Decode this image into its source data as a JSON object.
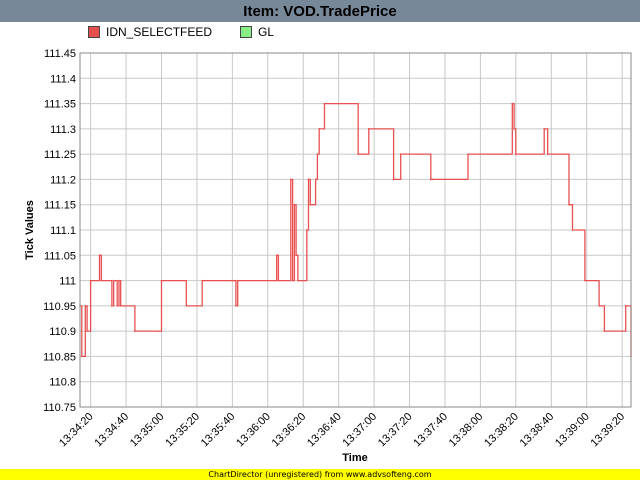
{
  "header": {
    "title": "Item: VOD.TradePrice"
  },
  "footer": {
    "text": "ChartDirector (unregistered) from www.advsofteng.com"
  },
  "colors": {
    "title_bg": "#778899",
    "series1": "#e85050",
    "series2": "#88ee88",
    "footer_bg": "#ffff00"
  },
  "chart_data": {
    "type": "line",
    "title": "Item: VOD.TradePrice",
    "xlabel": "Time",
    "ylabel": "Tick Values",
    "ylim": [
      110.75,
      111.45
    ],
    "yticks": [
      "110.75",
      "110.8",
      "110.85",
      "110.9",
      "110.95",
      "111",
      "111.05",
      "111.1",
      "111.15",
      "111.2",
      "111.25",
      "111.3",
      "111.35",
      "111.4",
      "111.45"
    ],
    "xlim": [
      "13:34:14",
      "13:39:25"
    ],
    "xticks": [
      "13:34:20",
      "13:34:40",
      "13:35:00",
      "13:35:20",
      "13:35:40",
      "13:36:00",
      "13:36:20",
      "13:36:40",
      "13:37:00",
      "13:37:20",
      "13:37:40",
      "13:38:00",
      "13:38:20",
      "13:38:40",
      "13:39:00",
      "13:39:20"
    ],
    "grid": true,
    "legend": "top-left",
    "legend_entries": [
      {
        "name": "IDN_SELECTFEED",
        "color": "#e85050"
      },
      {
        "name": "GL",
        "color": "#88ee88"
      }
    ],
    "series": [
      {
        "name": "IDN_SELECTFEED",
        "step": true,
        "points": [
          [
            "13:34:14",
            110.95
          ],
          [
            "13:34:15",
            110.85
          ],
          [
            "13:34:17",
            110.95
          ],
          [
            "13:34:18",
            110.9
          ],
          [
            "13:34:20",
            111.0
          ],
          [
            "13:34:25",
            111.05
          ],
          [
            "13:34:26",
            111.0
          ],
          [
            "13:34:32",
            110.95
          ],
          [
            "13:34:33",
            111.0
          ],
          [
            "13:34:35",
            110.95
          ],
          [
            "13:34:36",
            111.0
          ],
          [
            "13:34:37",
            110.95
          ],
          [
            "13:34:45",
            110.9
          ],
          [
            "13:34:58",
            110.9
          ],
          [
            "13:35:00",
            111.0
          ],
          [
            "13:35:14",
            110.95
          ],
          [
            "13:35:23",
            111.0
          ],
          [
            "13:35:41",
            111.0
          ],
          [
            "13:35:42",
            110.95
          ],
          [
            "13:35:43",
            111.0
          ],
          [
            "13:36:04",
            111.0
          ],
          [
            "13:36:05",
            111.05
          ],
          [
            "13:36:06",
            111.0
          ],
          [
            "13:36:13",
            111.2
          ],
          [
            "13:36:14",
            111.0
          ],
          [
            "13:36:15",
            111.15
          ],
          [
            "13:36:16",
            111.05
          ],
          [
            "13:36:17",
            111.0
          ],
          [
            "13:36:22",
            111.1
          ],
          [
            "13:36:23",
            111.2
          ],
          [
            "13:36:24",
            111.15
          ],
          [
            "13:36:27",
            111.2
          ],
          [
            "13:36:28",
            111.25
          ],
          [
            "13:36:29",
            111.3
          ],
          [
            "13:36:32",
            111.35
          ],
          [
            "13:36:51",
            111.25
          ],
          [
            "13:36:57",
            111.3
          ],
          [
            "13:37:11",
            111.2
          ],
          [
            "13:37:15",
            111.25
          ],
          [
            "13:37:32",
            111.2
          ],
          [
            "13:37:33",
            111.2
          ],
          [
            "13:37:53",
            111.25
          ],
          [
            "13:38:18",
            111.35
          ],
          [
            "13:38:19",
            111.3
          ],
          [
            "13:38:20",
            111.25
          ],
          [
            "13:38:36",
            111.3
          ],
          [
            "13:38:38",
            111.25
          ],
          [
            "13:38:50",
            111.15
          ],
          [
            "13:38:52",
            111.1
          ],
          [
            "13:38:59",
            111.0
          ],
          [
            "13:39:07",
            110.95
          ],
          [
            "13:39:10",
            110.9
          ],
          [
            "13:39:22",
            110.95
          ],
          [
            "13:39:25",
            110.85
          ]
        ]
      },
      {
        "name": "GL",
        "points": []
      }
    ]
  }
}
